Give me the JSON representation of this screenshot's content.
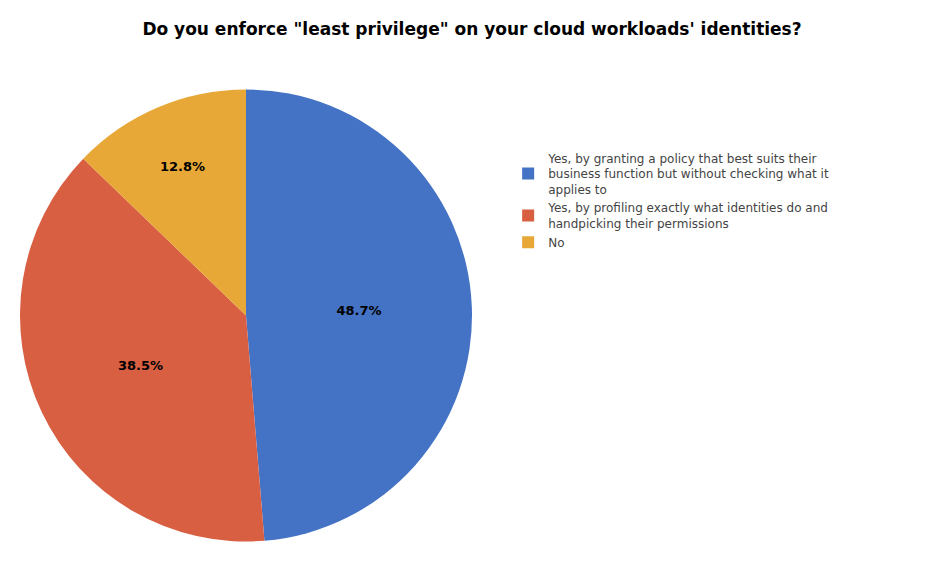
{
  "chart_data": {
    "type": "pie",
    "title": "Do you enforce \"least privilege\" on your cloud workloads' identities?",
    "categories": [
      "Yes, by granting a policy that best suits their\nbusiness function but without checking what it\napplies to",
      "Yes, by profiling exactly what identities do and\nhandpicking their permissions",
      "No"
    ],
    "values": [
      48.7,
      38.5,
      12.8
    ],
    "value_labels": [
      "48.7%",
      "38.5%",
      "12.8%"
    ],
    "colors": [
      "#4472C4",
      "#D95F43",
      "#E8A838"
    ],
    "data_labels": true,
    "legend": "right"
  }
}
